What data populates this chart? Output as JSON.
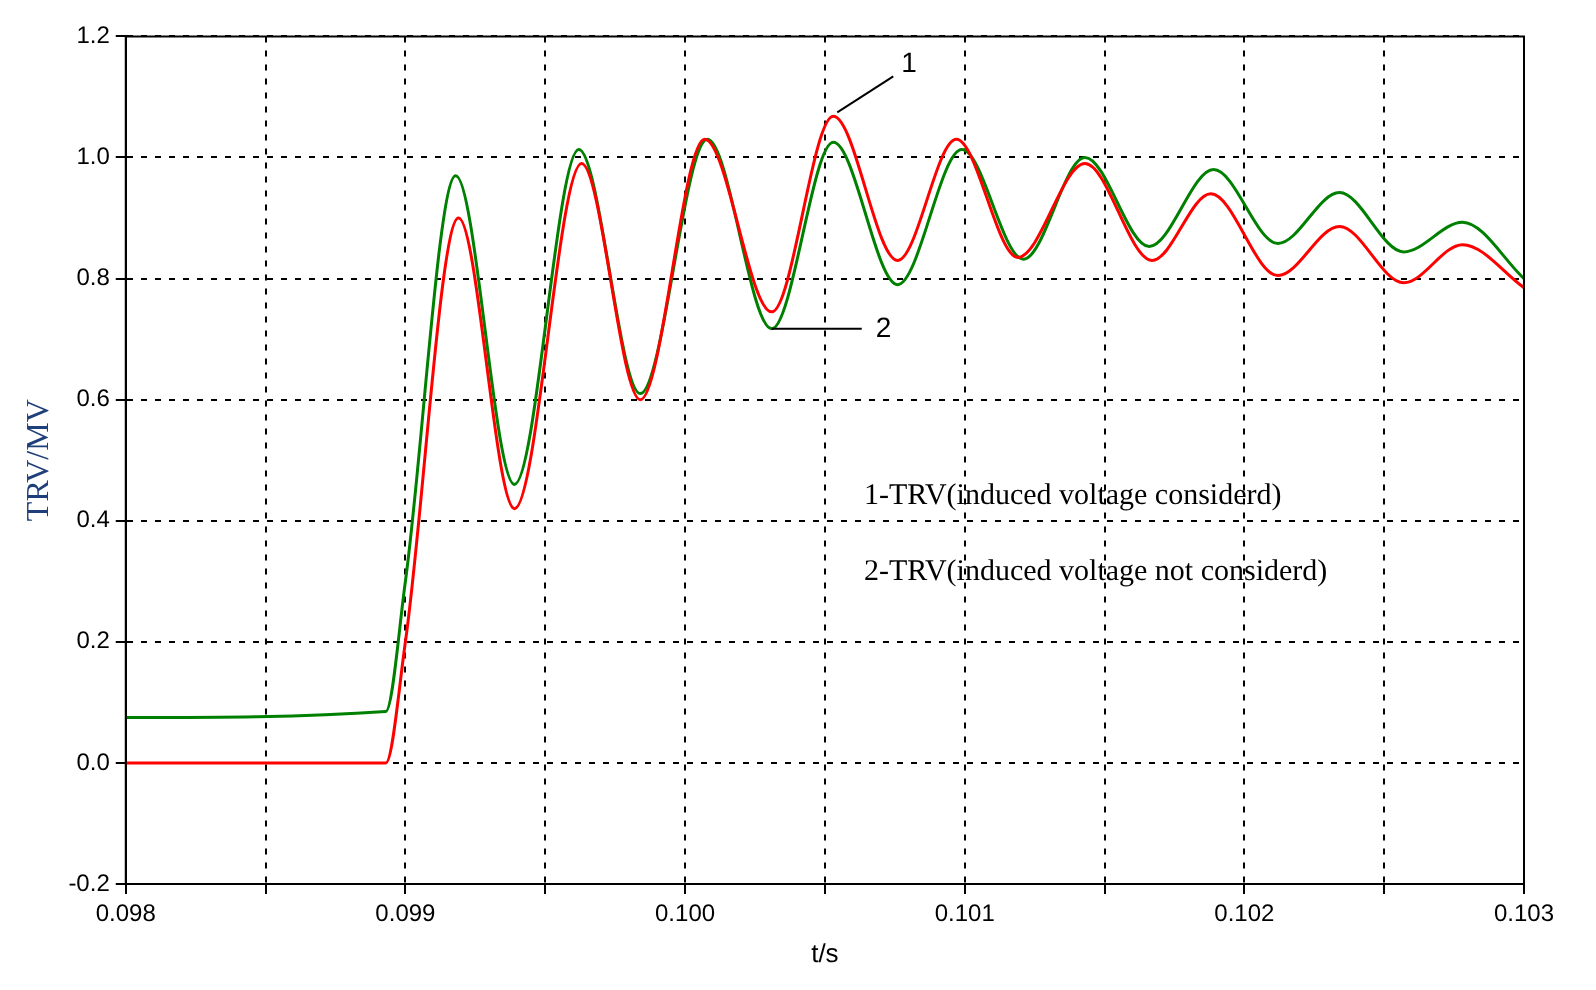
{
  "chart_data": {
    "type": "line",
    "xlabel": "t/s",
    "ylabel": "TRV/MV",
    "xlim": [
      0.098,
      0.103
    ],
    "ylim": [
      -0.2,
      1.2
    ],
    "xticks": [
      0.098,
      {
        "value": 0.0985,
        "label": null
      },
      0.099,
      {
        "value": 0.0995,
        "label": null
      },
      {
        "value": 0.1,
        "label": "0.100"
      },
      {
        "value": 0.1005,
        "label": null
      },
      0.101,
      {
        "value": 0.1015,
        "label": null
      },
      0.102,
      {
        "value": 0.1025,
        "label": null
      },
      0.103
    ],
    "yticks": [
      -0.2,
      {
        "value": 0,
        "label": "0.0"
      },
      0.2,
      0.4,
      0.6,
      0.8,
      {
        "value": 1,
        "label": "1.0"
      },
      1.2
    ],
    "grid": true,
    "legend": false,
    "marker": "none",
    "line_style": "solid",
    "series": [
      {
        "color": "#ff0000",
        "x": [
          0.098,
          0.09893,
          0.099,
          0.09919,
          0.09939,
          0.09963,
          0.09984,
          0.10007,
          0.10031,
          0.10053,
          0.10076,
          0.10097,
          0.10119,
          0.10143,
          0.10167,
          0.10188,
          0.10212,
          0.10234,
          0.10257,
          0.10278,
          0.103
        ],
        "values": [
          0,
          0,
          0.2,
          0.9,
          0.42,
          0.99,
          0.6,
          1.03,
          0.745,
          1.068,
          0.83,
          1.03,
          0.835,
          0.99,
          0.83,
          0.94,
          0.805,
          0.886,
          0.793,
          0.856,
          0.785
        ]
      },
      {
        "color": "#008000",
        "x": [
          0.098,
          0.09893,
          0.099,
          0.09918,
          0.09939,
          0.09962,
          0.09984,
          0.10008,
          0.10031,
          0.10053,
          0.10076,
          0.10099,
          0.10121,
          0.10143,
          0.10166,
          0.10189,
          0.10212,
          0.10234,
          0.10257,
          0.10278,
          0.103
        ],
        "values": [
          0.075,
          0.085,
          0.3,
          0.97,
          0.46,
          1.013,
          0.61,
          1.03,
          0.717,
          1.025,
          0.79,
          1.013,
          0.832,
          1.0,
          0.853,
          0.98,
          0.858,
          0.942,
          0.844,
          0.893,
          0.8
        ]
      }
    ],
    "annotations": [
      {
        "text": "1",
        "x": 0.10053,
        "y": 1.068
      },
      {
        "text": "2",
        "x": 0.10031,
        "y": 0.717
      },
      "1-TRV(induced voltage considerd)",
      "2-TRV(induced voltage not considerd)"
    ]
  }
}
